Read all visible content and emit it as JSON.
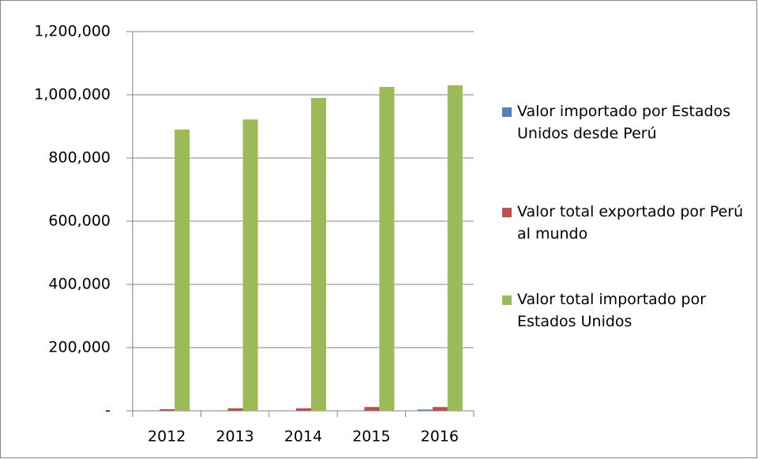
{
  "chart_data": {
    "type": "bar",
    "categories": [
      "2012",
      "2013",
      "2014",
      "2015",
      "2016"
    ],
    "series": [
      {
        "name": "Valor importado por Estados Unidos desde Perú",
        "color": "#4f81bd",
        "values": [
          1000,
          1000,
          1000,
          1000,
          4000
        ]
      },
      {
        "name": "Valor total exportado por Perú al mundo",
        "color": "#c0504d",
        "values": [
          5000,
          8000,
          8000,
          12000,
          12000
        ]
      },
      {
        "name": "Valor total importado por Estados Unidos",
        "color": "#9bbb59",
        "values": [
          890000,
          922000,
          990000,
          1025000,
          1030000
        ]
      }
    ],
    "ylim": [
      0,
      1200000
    ],
    "yticks": [
      {
        "value": 0,
        "label": "-"
      },
      {
        "value": 200000,
        "label": "200,000"
      },
      {
        "value": 400000,
        "label": "400,000"
      },
      {
        "value": 600000,
        "label": "600,000"
      },
      {
        "value": 800000,
        "label": "800,000"
      },
      {
        "value": 1000000,
        "label": "1,000,000"
      },
      {
        "value": 1200000,
        "label": "1,200,000"
      }
    ],
    "grid": true,
    "legend": "right"
  }
}
